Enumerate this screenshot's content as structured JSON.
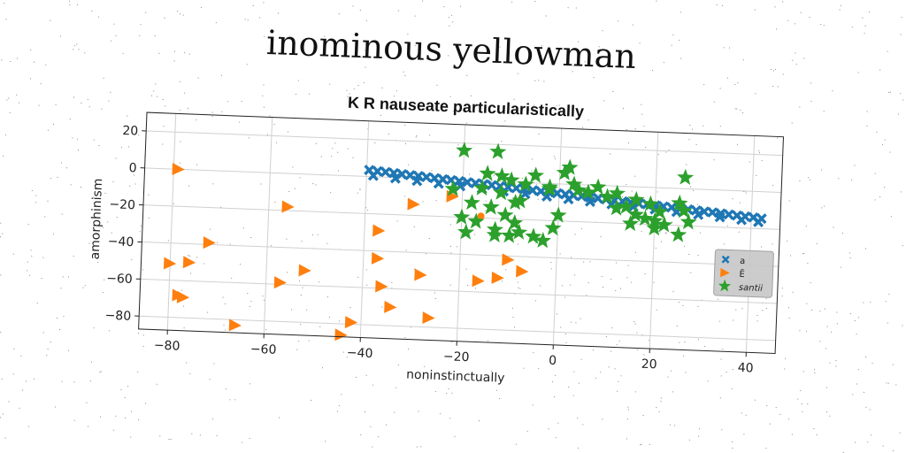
{
  "figure": {
    "supertitle": "inominous yellowman"
  },
  "chart_data": {
    "type": "scatter",
    "title": "K R nauseate particularistically",
    "xlabel": "noninstinctually",
    "ylabel": "amorphinism",
    "xlim": [
      -86,
      46
    ],
    "ylim": [
      -87,
      30
    ],
    "xticks": [
      -80,
      -60,
      -40,
      -20,
      0,
      20,
      40
    ],
    "yticks": [
      20,
      0,
      -20,
      -40,
      -60,
      -80
    ],
    "grid": true,
    "legend_position": "right",
    "series": [
      {
        "name": "a",
        "marker": "x",
        "color": "#1f77b4",
        "x": [
          -39.5,
          -37.8,
          -36.1,
          -34.4,
          -32.7,
          -31.0,
          -29.3,
          -27.6,
          -25.9,
          -24.2,
          -22.5,
          -20.8,
          -19.1,
          -17.4,
          -15.7,
          -14.0,
          -12.3,
          -10.6,
          -8.9,
          -7.2,
          -5.5,
          -3.8,
          -2.1,
          -0.4,
          1.3,
          3.0,
          4.7,
          6.4,
          8.1,
          9.8,
          11.5,
          13.2,
          14.9,
          16.6,
          18.3,
          20.0,
          21.7,
          23.4,
          25.1,
          26.8,
          28.5,
          30.2,
          31.9,
          33.6,
          35.3,
          37.0,
          38.7,
          40.4,
          42.1,
          -38.6,
          -34.0,
          -29.5,
          -25.0,
          -20.5,
          -16.0,
          -11.5,
          -7.0,
          -2.5,
          2.0,
          6.5,
          11.0,
          15.5,
          20.0,
          24.5,
          29.0,
          33.5,
          38.0,
          41.5
        ],
        "y": [
          3.5,
          3.1,
          2.8,
          2.4,
          2.0,
          1.6,
          1.3,
          0.9,
          0.5,
          0.1,
          -0.2,
          -0.6,
          -1.0,
          -1.4,
          -1.7,
          -2.1,
          -2.5,
          -2.9,
          -3.2,
          -3.6,
          -4.0,
          -4.4,
          -4.7,
          -5.1,
          -5.5,
          -5.9,
          -6.2,
          -6.6,
          -7.0,
          -7.4,
          -7.7,
          -8.1,
          -8.5,
          -8.9,
          -9.2,
          -9.6,
          -10.0,
          -10.4,
          -10.7,
          -11.1,
          -11.5,
          -11.9,
          -12.2,
          -12.6,
          -13.0,
          -13.4,
          -13.7,
          -14.1,
          -14.5,
          0.6,
          -0.4,
          -1.3,
          -2.3,
          -3.2,
          -4.2,
          -5.1,
          -6.1,
          -7.0,
          -8.0,
          -8.9,
          -9.9,
          -10.8,
          -11.8,
          -12.7,
          -13.7,
          -14.6,
          -15.6,
          -16.4
        ]
      },
      {
        "name": "Ē",
        "marker": "triangle-right",
        "color": "#ff7f0e",
        "x": [
          -79,
          -80,
          -78,
          -76,
          -72,
          -77,
          -66,
          -56,
          -52,
          -57,
          -44,
          -42,
          -37,
          -37,
          -36,
          -34,
          -30,
          -28,
          -26,
          -22,
          -12,
          -10,
          -7,
          -16
        ],
        "y": [
          0,
          -51,
          -68,
          -50,
          -39,
          -69,
          -83,
          -18,
          -52,
          -59,
          -86,
          -79,
          -29,
          -44,
          -59,
          -70,
          -14,
          -52,
          -75,
          -9,
          -52,
          -42,
          -48,
          -54
        ],
        "extra_x": [
          -16
        ],
        "extra_y": [
          -19
        ]
      },
      {
        "name": "santii",
        "marker": "star",
        "color": "#2ca02c",
        "x": [
          -20,
          -13,
          -15,
          -12,
          -10,
          -16,
          -12,
          -8,
          -18,
          -14,
          -11,
          -9,
          -22,
          -17,
          -20,
          -13,
          -10,
          -5,
          -3,
          0,
          1,
          2,
          3,
          -7,
          -2,
          6,
          10,
          14,
          18,
          15,
          20,
          25,
          26,
          27,
          25,
          -19,
          -13,
          -8,
          -5,
          -2,
          4,
          8,
          12,
          16,
          19,
          21,
          22,
          -1,
          12,
          16,
          20,
          26,
          -14,
          -9
        ],
        "y": [
          16,
          16,
          4,
          3,
          1,
          -4,
          -6,
          -10,
          -12,
          -14,
          -18,
          -22,
          -5,
          -22,
          -20,
          -26,
          -29,
          -29,
          -31,
          -17,
          6,
          9,
          0,
          -1,
          -3,
          -4,
          -6,
          -11,
          -17,
          -20,
          -22,
          -8,
          -12,
          -18,
          -25,
          -28,
          -29,
          -27,
          4,
          -2,
          -3,
          -1,
          -4,
          -7,
          -9,
          -13,
          -20,
          -24,
          -12,
          -15,
          -18,
          6,
          -14,
          -11
        ]
      }
    ]
  }
}
